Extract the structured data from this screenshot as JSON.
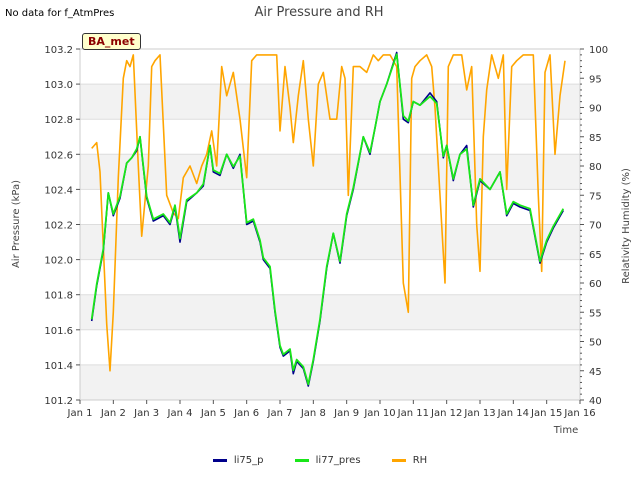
{
  "header_note": "No data for f_AtmPres",
  "station_label": "BA_met",
  "chart_data": {
    "type": "line",
    "title": "Air Pressure and RH",
    "xlabel": "Time",
    "ylabel": "Air Pressure (kPa)",
    "y2label": "Relativity Humidity (%)",
    "xlim": [
      1,
      16
    ],
    "ylim": [
      101.2,
      103.2
    ],
    "y2lim": [
      40,
      100
    ],
    "x_ticks": [
      1,
      2,
      3,
      4,
      5,
      6,
      7,
      8,
      9,
      10,
      11,
      12,
      13,
      14,
      15,
      16
    ],
    "x_tick_labels": [
      "Jan 1",
      "Jan 2",
      "Jan 3",
      "Jan 4",
      "Jan 5",
      "Jan 6",
      "Jan 7",
      "Jan 8",
      "Jan 9",
      "Jan 10",
      "Jan 11",
      "Jan 12",
      "Jan 13",
      "Jan 14",
      "Jan 15",
      "Jan 16"
    ],
    "y_ticks": [
      101.2,
      101.4,
      101.6,
      101.8,
      102.0,
      102.2,
      102.4,
      102.6,
      102.8,
      103.0,
      103.2
    ],
    "y_tick_labels": [
      "101.2",
      "101.4",
      "101.6",
      "101.8",
      "102.0",
      "102.2",
      "102.4",
      "102.6",
      "102.8",
      "103.0",
      "103.2"
    ],
    "y2_ticks": [
      40,
      45,
      50,
      55,
      60,
      65,
      70,
      75,
      80,
      85,
      90,
      95,
      100
    ],
    "y2_tick_labels": [
      "40",
      "45",
      "50",
      "55",
      "60",
      "65",
      "70",
      "75",
      "80",
      "85",
      "90",
      "95",
      "100"
    ],
    "grid": "horizontal bands",
    "legend_position": "bottom-center",
    "series": [
      {
        "name": "li75_p",
        "axis": "left",
        "color": "#00008b",
        "x": [
          1.35,
          1.5,
          1.7,
          1.85,
          2.0,
          2.2,
          2.4,
          2.55,
          2.7,
          2.8,
          3.0,
          3.2,
          3.5,
          3.7,
          3.85,
          4.0,
          4.2,
          4.5,
          4.7,
          4.9,
          5.0,
          5.2,
          5.4,
          5.6,
          5.8,
          6.0,
          6.2,
          6.4,
          6.5,
          6.7,
          6.85,
          7.0,
          7.1,
          7.3,
          7.4,
          7.5,
          7.7,
          7.85,
          8.0,
          8.2,
          8.4,
          8.6,
          8.8,
          9.0,
          9.2,
          9.5,
          9.7,
          9.85,
          10.0,
          10.2,
          10.5,
          10.7,
          10.85,
          11.0,
          11.2,
          11.5,
          11.7,
          11.9,
          12.0,
          12.2,
          12.4,
          12.6,
          12.8,
          13.0,
          13.3,
          13.6,
          13.8,
          14.0,
          14.2,
          14.5,
          14.8,
          15.0,
          15.2,
          15.5
        ],
        "y": [
          101.65,
          101.85,
          102.05,
          102.38,
          102.25,
          102.35,
          102.55,
          102.58,
          102.62,
          102.7,
          102.35,
          102.22,
          102.25,
          102.2,
          102.3,
          102.1,
          102.33,
          102.38,
          102.42,
          102.65,
          102.5,
          102.48,
          102.6,
          102.52,
          102.6,
          102.2,
          102.22,
          102.1,
          102.0,
          101.95,
          101.7,
          101.5,
          101.45,
          101.48,
          101.35,
          101.42,
          101.38,
          101.28,
          101.42,
          101.65,
          101.95,
          102.15,
          101.98,
          102.25,
          102.4,
          102.7,
          102.6,
          102.75,
          102.9,
          103.0,
          103.18,
          102.8,
          102.78,
          102.9,
          102.88,
          102.95,
          102.9,
          102.58,
          102.65,
          102.45,
          102.6,
          102.65,
          102.3,
          102.45,
          102.4,
          102.5,
          102.25,
          102.32,
          102.3,
          102.28,
          101.98,
          102.1,
          102.18,
          102.28
        ]
      },
      {
        "name": "li77_pres",
        "axis": "left",
        "color": "#19e619",
        "x": [
          1.35,
          1.5,
          1.7,
          1.85,
          2.0,
          2.2,
          2.4,
          2.55,
          2.7,
          2.8,
          3.0,
          3.2,
          3.5,
          3.7,
          3.85,
          4.0,
          4.2,
          4.5,
          4.7,
          4.9,
          5.0,
          5.2,
          5.4,
          5.6,
          5.8,
          6.0,
          6.2,
          6.4,
          6.5,
          6.7,
          6.85,
          7.0,
          7.1,
          7.3,
          7.4,
          7.5,
          7.7,
          7.85,
          8.0,
          8.2,
          8.4,
          8.6,
          8.8,
          9.0,
          9.2,
          9.5,
          9.7,
          9.85,
          10.0,
          10.2,
          10.5,
          10.7,
          10.85,
          11.0,
          11.2,
          11.5,
          11.7,
          11.9,
          12.0,
          12.2,
          12.4,
          12.6,
          12.8,
          13.0,
          13.3,
          13.6,
          13.8,
          14.0,
          14.2,
          14.5,
          14.8,
          15.0,
          15.2,
          15.5
        ],
        "y": [
          101.66,
          101.86,
          102.06,
          102.38,
          102.26,
          102.36,
          102.55,
          102.58,
          102.63,
          102.7,
          102.36,
          102.23,
          102.26,
          102.21,
          102.31,
          102.12,
          102.34,
          102.38,
          102.43,
          102.65,
          102.51,
          102.49,
          102.6,
          102.53,
          102.59,
          102.21,
          102.23,
          102.11,
          102.01,
          101.96,
          101.71,
          101.51,
          101.46,
          101.49,
          101.37,
          101.43,
          101.39,
          101.29,
          101.43,
          101.66,
          101.96,
          102.15,
          101.99,
          102.26,
          102.41,
          102.7,
          102.61,
          102.75,
          102.9,
          103.0,
          103.17,
          102.82,
          102.79,
          102.9,
          102.88,
          102.93,
          102.89,
          102.59,
          102.65,
          102.46,
          102.6,
          102.63,
          102.31,
          102.46,
          102.4,
          102.5,
          102.26,
          102.33,
          102.31,
          102.29,
          101.99,
          102.11,
          102.19,
          102.29
        ]
      },
      {
        "name": "RH",
        "axis": "right",
        "color": "#ffa500",
        "x": [
          1.35,
          1.5,
          1.6,
          1.8,
          1.9,
          2.0,
          2.15,
          2.3,
          2.4,
          2.5,
          2.6,
          2.75,
          2.85,
          2.95,
          3.05,
          3.15,
          3.25,
          3.4,
          3.6,
          3.8,
          3.95,
          4.1,
          4.3,
          4.5,
          4.65,
          4.8,
          4.95,
          5.1,
          5.25,
          5.4,
          5.6,
          5.8,
          6.0,
          6.15,
          6.3,
          6.6,
          6.9,
          7.0,
          7.15,
          7.3,
          7.4,
          7.55,
          7.7,
          7.85,
          8.0,
          8.15,
          8.3,
          8.5,
          8.7,
          8.85,
          8.95,
          9.05,
          9.2,
          9.4,
          9.6,
          9.8,
          9.95,
          10.1,
          10.3,
          10.5,
          10.7,
          10.85,
          10.95,
          11.05,
          11.2,
          11.4,
          11.55,
          11.65,
          11.8,
          11.95,
          12.05,
          12.2,
          12.45,
          12.6,
          12.75,
          12.9,
          13.0,
          13.1,
          13.2,
          13.35,
          13.55,
          13.7,
          13.8,
          13.95,
          14.1,
          14.3,
          14.6,
          14.75,
          14.85,
          14.95,
          15.1,
          15.25,
          15.4,
          15.55
        ],
        "y": [
          83,
          84,
          79,
          53,
          45,
          55,
          78,
          95,
          98,
          97,
          99,
          80,
          68,
          74,
          80,
          97,
          98,
          99,
          75,
          72,
          71,
          78,
          80,
          77,
          80,
          82,
          86,
          80,
          97,
          92,
          96,
          88,
          78,
          98,
          99,
          99,
          99,
          86,
          97,
          90,
          84,
          92,
          98,
          88,
          80,
          94,
          96,
          88,
          88,
          97,
          95,
          75,
          97,
          97,
          96,
          99,
          98,
          99,
          99,
          97,
          60,
          55,
          95,
          97,
          98,
          99,
          97,
          90,
          75,
          60,
          97,
          99,
          99,
          93,
          97,
          70,
          62,
          85,
          93,
          99,
          95,
          99,
          76,
          97,
          98,
          99,
          99,
          75,
          62,
          96,
          99,
          82,
          92,
          98
        ]
      }
    ]
  }
}
